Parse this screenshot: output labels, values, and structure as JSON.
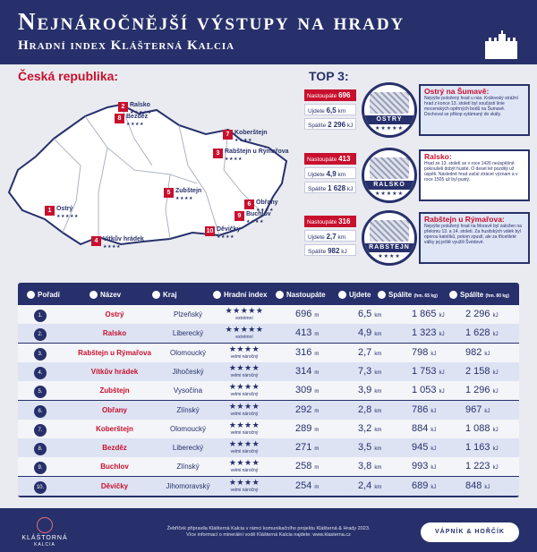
{
  "header": {
    "title": "Nejnáročnější výstupy na hrady",
    "subtitle": "Hradní index Klášterná Kalcia"
  },
  "map": {
    "title": "Česká republika:",
    "pins": [
      {
        "rank": "1",
        "name": "Ostrý",
        "stars": "★★★★★"
      },
      {
        "rank": "2",
        "name": "Ralsko",
        "stars": "★★★★★"
      },
      {
        "rank": "3",
        "name": "Rabštejn u Rýmařova",
        "stars": "★★★★"
      },
      {
        "rank": "4",
        "name": "Vitkův hrádek",
        "stars": "★★★★"
      },
      {
        "rank": "5",
        "name": "Zubštejn",
        "stars": "★★★★"
      },
      {
        "rank": "6",
        "name": "Obřany",
        "stars": "★★★★"
      },
      {
        "rank": "7",
        "name": "Koberštejn",
        "stars": "★★★★"
      },
      {
        "rank": "8",
        "name": "Bezděz",
        "stars": "★★★★"
      },
      {
        "rank": "9",
        "name": "Buchlov",
        "stars": "★★★★"
      },
      {
        "rank": "10",
        "name": "Děvičky",
        "stars": "★★★★"
      }
    ]
  },
  "top3": {
    "title": "TOP 3:",
    "items": [
      {
        "name": "Ostrý na Šumavě:",
        "label": "OSTRÝ",
        "stars": "★★★★★",
        "ascent_label": "Nastoupáte",
        "ascent_value": "696",
        "ascent_unit": "m",
        "walk_label": "Ujdete",
        "walk_value": "6,5",
        "walk_unit": "km",
        "burn_label": "Spálíte",
        "burn_value": "2 296",
        "burn_unit": "kJ",
        "text": "Nejvýše položený hrad u nás. Královský strážní hrad z konce 13. století byl součástí linie mocenských opěrných bodů na Šumavě. Dochoval se přikop vytámaný do skály."
      },
      {
        "name": "Ralsko:",
        "label": "RALSKO",
        "stars": "★★★★★",
        "ascent_label": "Nastoupáte",
        "ascent_value": "413",
        "ascent_unit": "m",
        "walk_label": "Ujdete",
        "walk_value": "4,9",
        "walk_unit": "km",
        "burn_label": "Spálíte",
        "burn_value": "1 628",
        "burn_unit": "kJ",
        "text": "Hrad ze 13. století se v roce 1426 neúspěšně pokoušeli dobýt husité. O deset let později už úspěli. Následně hrad začal ztrácet význam a v roce 1505 už byl pustý."
      },
      {
        "name": "Rabštejn u Rýmařova:",
        "label": "RABŠTEJN",
        "stars": "★★★★",
        "ascent_label": "Nastoupáte",
        "ascent_value": "316",
        "ascent_unit": "m",
        "walk_label": "Ujdete",
        "walk_value": "2,7",
        "walk_unit": "km",
        "burn_label": "Spálíte",
        "burn_value": "982",
        "burn_unit": "kJ",
        "text": "Nejvýše položený hrad na Moravě byl založen na přelomu 13. a 14. století. Za husitských válek byl oporou katolíků, potom zpustl, ale za třicetileté války jej ještě využili Švédové."
      }
    ]
  },
  "table": {
    "headers": {
      "rank": "Pořadí",
      "name": "Název",
      "kraj": "Kraj",
      "index": "Hradní index",
      "ascent": "Nastoupáte",
      "walk": "Ujdete",
      "burn65": "Spálíte",
      "burn65_note": "(hm. 65 kg)",
      "burn80": "Spálíte",
      "burn80_note": "(hm. 80 kg)"
    },
    "rows": [
      {
        "rank": "1.",
        "name": "Ostrý",
        "kraj": "Plzeňský",
        "stars": "★★★★★",
        "level": "extrémní",
        "ascent": "696",
        "walk": "6,5",
        "burn65": "1 865",
        "burn80": "2 296"
      },
      {
        "rank": "2.",
        "name": "Ralsko",
        "kraj": "Liberecký",
        "stars": "★★★★★",
        "level": "extrémní",
        "ascent": "413",
        "walk": "4,9",
        "burn65": "1 323",
        "burn80": "1 628"
      },
      {
        "rank": "3.",
        "name": "Rabštejn u Rýmařova",
        "kraj": "Olomoucký",
        "stars": "★★★★",
        "level": "velmi náročný",
        "ascent": "316",
        "walk": "2,7",
        "burn65": "798",
        "burn80": "982"
      },
      {
        "rank": "4.",
        "name": "Vítkův hrádek",
        "kraj": "Jihočeský",
        "stars": "★★★★",
        "level": "velmi náročný",
        "ascent": "314",
        "walk": "7,3",
        "burn65": "1 753",
        "burn80": "2 158"
      },
      {
        "rank": "5.",
        "name": "Zubštejn",
        "kraj": "Vysočina",
        "stars": "★★★★",
        "level": "velmi náročný",
        "ascent": "309",
        "walk": "3,9",
        "burn65": "1 053",
        "burn80": "1 296"
      },
      {
        "rank": "6.",
        "name": "Obřany",
        "kraj": "Zlínský",
        "stars": "★★★★",
        "level": "velmi náročný",
        "ascent": "292",
        "walk": "2,8",
        "burn65": "786",
        "burn80": "967"
      },
      {
        "rank": "7.",
        "name": "Koberštejn",
        "kraj": "Olomoucký",
        "stars": "★★★★",
        "level": "velmi náročný",
        "ascent": "289",
        "walk": "3,2",
        "burn65": "884",
        "burn80": "1 088"
      },
      {
        "rank": "8.",
        "name": "Bezděz",
        "kraj": "Liberecký",
        "stars": "★★★★",
        "level": "velmi náročný",
        "ascent": "271",
        "walk": "3,5",
        "burn65": "945",
        "burn80": "1 163"
      },
      {
        "rank": "9.",
        "name": "Buchlov",
        "kraj": "Zlínský",
        "stars": "★★★★",
        "level": "velmi náročný",
        "ascent": "258",
        "walk": "3,8",
        "burn65": "993",
        "burn80": "1 223"
      },
      {
        "rank": "10.",
        "name": "Děvičky",
        "kraj": "Jihomoravský",
        "stars": "★★★★",
        "level": "velmi náročný",
        "ascent": "254",
        "walk": "2,4",
        "burn65": "689",
        "burn80": "848"
      }
    ],
    "units": {
      "m": "m",
      "km": "km",
      "kj": "kJ"
    }
  },
  "footer": {
    "note_line1": "Žebříček připravila Klášterná Kalcia v rámci komunikačního projektu Klášterná & Hrady 2023.",
    "note_line2": "Více informací o minerální vodě Klášterná Kalcia najdete: www.klasterna.cz",
    "brand_left": "KLÁŠTORNÁ",
    "brand_left_sub": "KALCIA",
    "brand_right": "VÁPNÍK & HOŘČÍK"
  },
  "colors": {
    "navy": "#27306b",
    "red": "#c8102e",
    "light_row": "#f4f5f9",
    "blue_row": "#dde3f3"
  }
}
